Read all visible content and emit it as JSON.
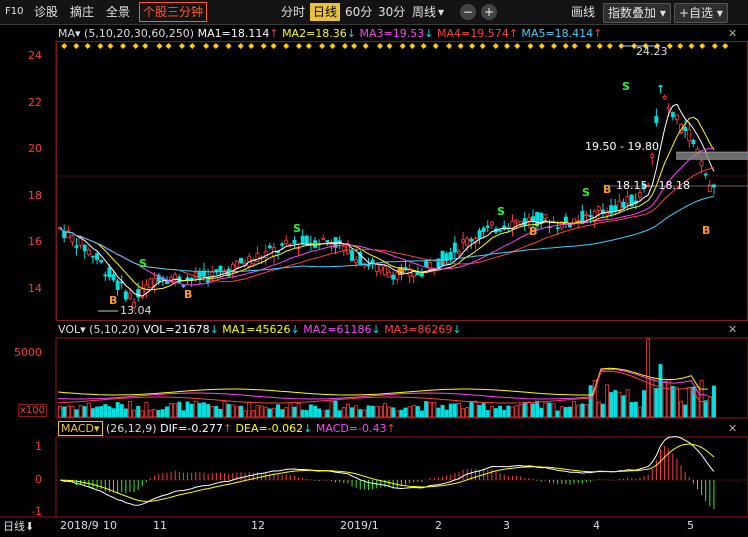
{
  "toolbar": {
    "f10": "F10",
    "diagnose": "诊股",
    "pick": "摘庄",
    "panorama": "全景",
    "three_min": "个股三分钟",
    "periods": [
      "分时",
      "日线",
      "60分",
      "30分",
      "周线"
    ],
    "active_period": "日线",
    "period_dropdown": "▾",
    "minus": "−",
    "plus": "+",
    "draw_line": "画线",
    "index_overlay": "指数叠加",
    "add_watch": "+自选"
  },
  "main_panel": {
    "indicator": "MA",
    "params": "(5,10,20,30,60,250)",
    "ma1": "MA1=18.114",
    "ma2": "MA2=18.36",
    "ma3": "MA3=19.53",
    "ma4": "MA4=19.574",
    "ma5": "MA5=18.414",
    "y_ticks": [
      "24",
      "22",
      "20",
      "18",
      "16",
      "14"
    ],
    "high_label": "24.23",
    "low_label": "13.04",
    "range1_label": "19.50 - 19.80",
    "range2_label": "18.15 - 18.18",
    "signal_buy": "B",
    "signal_sell": "S"
  },
  "volume_panel": {
    "indicator": "VOL",
    "params": "(5,10,20)",
    "vol": "VOL=21678",
    "ma1": "MA1=45626",
    "ma2": "MA2=61186",
    "ma3": "MA3=86269",
    "y_tick": "5000",
    "unit": "x100"
  },
  "macd_panel": {
    "indicator": "MACD",
    "params": "(26,12,9)",
    "dif": "DIF=-0.277",
    "dea": "DEA=-0.062",
    "macd": "MACD=-0.43",
    "y_ticks": [
      "1",
      "0",
      "-1"
    ]
  },
  "x_axis": {
    "period_button": "日线",
    "ticks": [
      "2018/9",
      "10",
      "11",
      "12",
      "2019/1",
      "2",
      "3",
      "4",
      "5"
    ]
  },
  "colors": {
    "up": "#ff3b3b",
    "down": "#00e0e0",
    "ma1": "#ffffff",
    "ma2": "#ffff00",
    "ma3": "#ff40ff",
    "ma4": "#ff4040",
    "ma5": "#40d0ff",
    "grid": "#8a1a1a"
  }
}
